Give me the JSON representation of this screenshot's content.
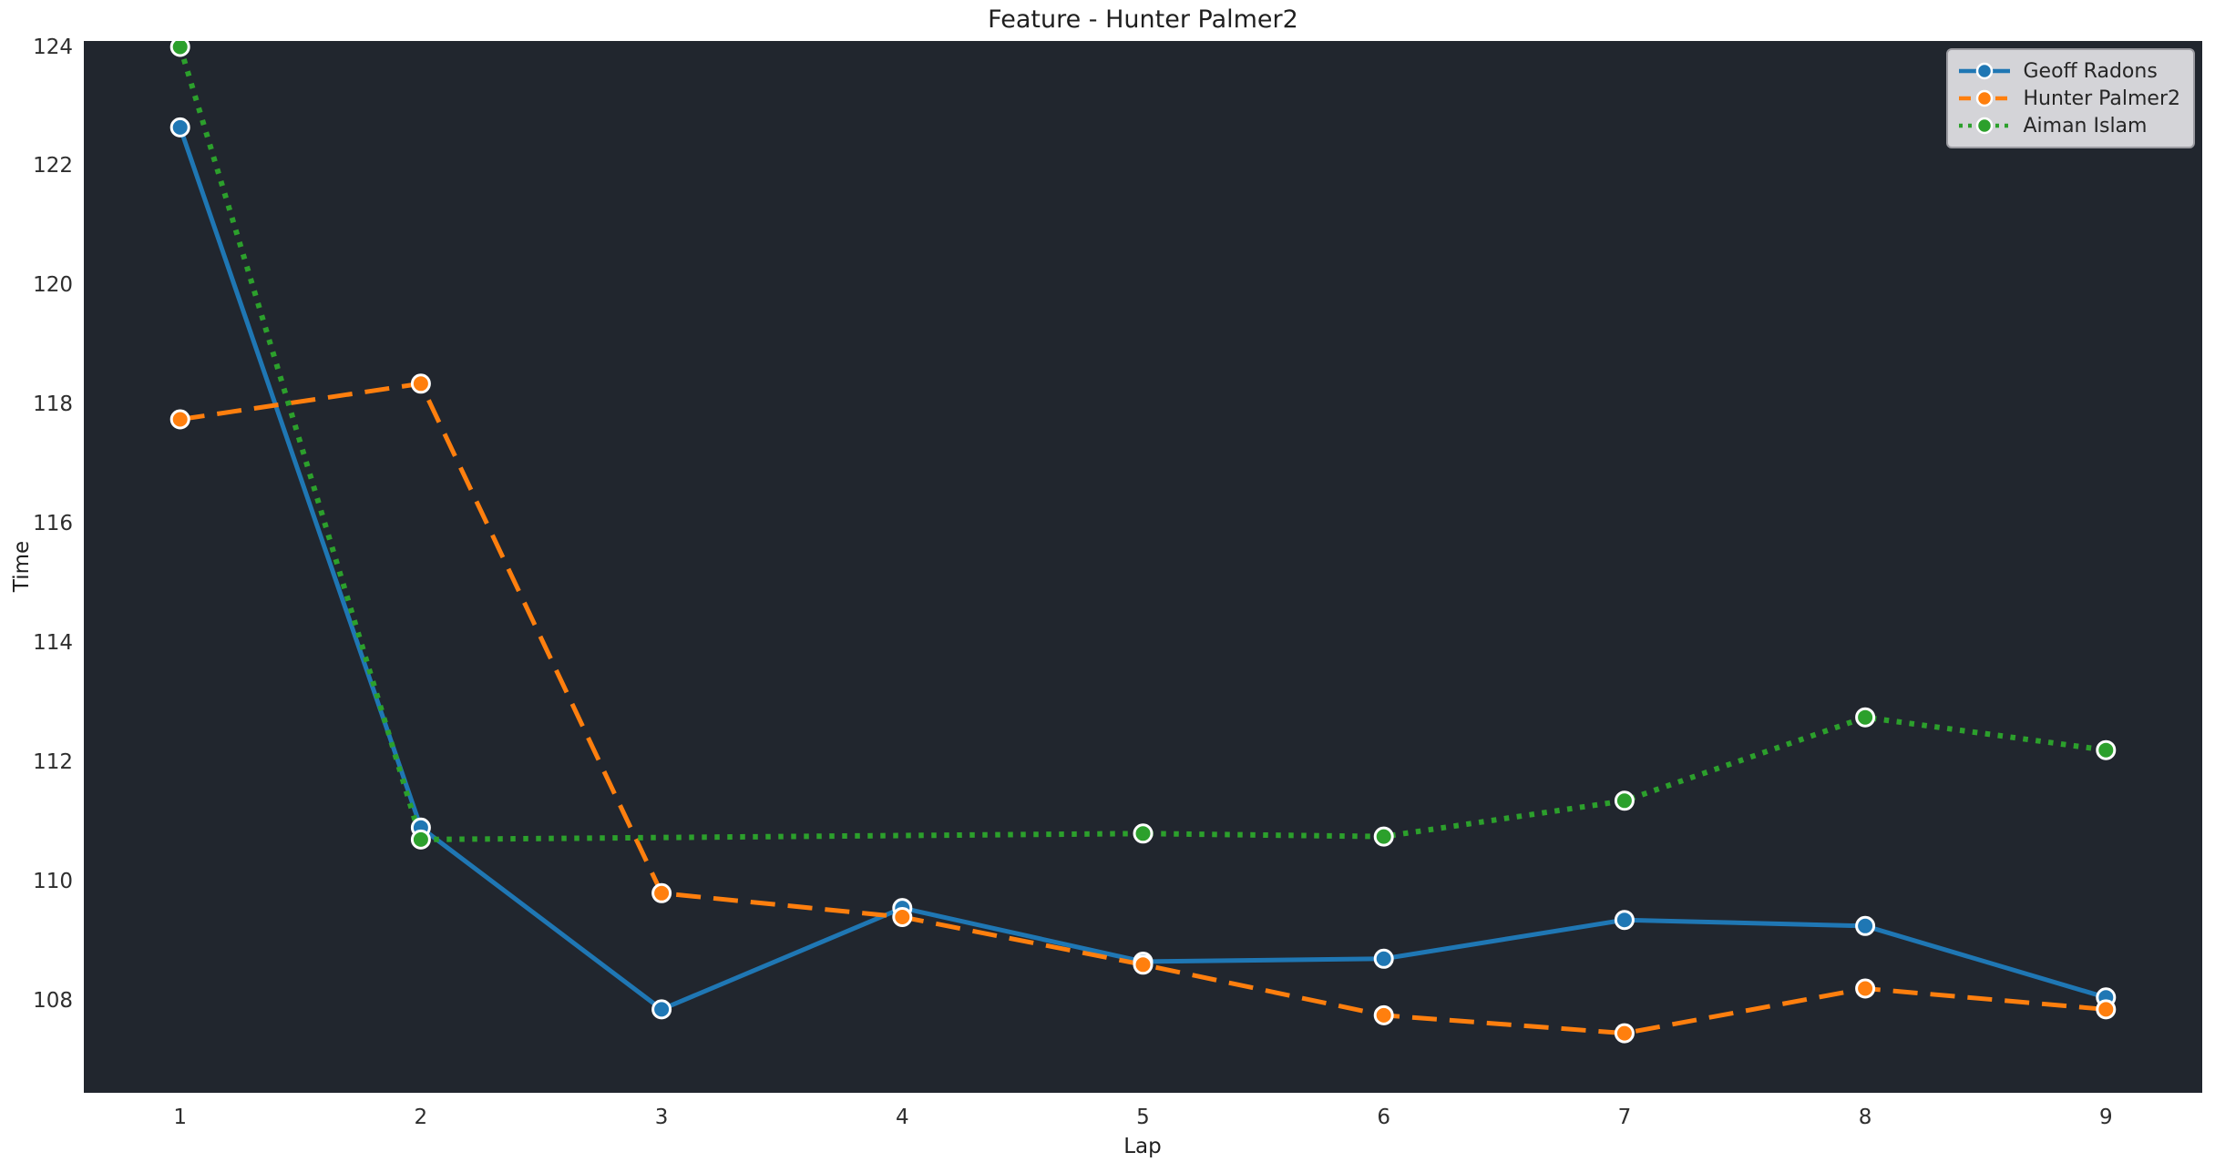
{
  "figure": {
    "title": "Feature - Hunter Palmer2"
  },
  "chart_data": {
    "type": "line",
    "title": "Feature - Hunter Palmer2",
    "xlabel": "Lap",
    "ylabel": "Time",
    "x": [
      1,
      2,
      3,
      4,
      5,
      6,
      7,
      8,
      9
    ],
    "xticks": [
      "1",
      "2",
      "3",
      "4",
      "5",
      "6",
      "7",
      "8",
      "9"
    ],
    "yticks": [
      124,
      122,
      120,
      118,
      116,
      114,
      112,
      110,
      108
    ],
    "xlim": [
      0.6,
      9.4
    ],
    "ylim": [
      106.45,
      124.1
    ],
    "grid": false,
    "legend_position": "upper right",
    "plot_background": "#21262e",
    "figure_background": "#ffffff",
    "marker_edge_color": "#ffffff",
    "series": [
      {
        "name": "Geoff Radons",
        "color": "#1f77b4",
        "linestyle": "solid",
        "marker": "circle",
        "values": [
          122.65,
          110.9,
          107.85,
          109.55,
          108.65,
          108.7,
          109.35,
          109.25,
          108.05
        ]
      },
      {
        "name": "Hunter Palmer2",
        "color": "#ff7f0e",
        "linestyle": "dashed",
        "marker": "circle",
        "values": [
          117.75,
          118.35,
          109.8,
          109.4,
          108.6,
          107.75,
          107.45,
          108.2,
          107.85
        ]
      },
      {
        "name": "Aiman Islam",
        "color": "#2ca02c",
        "linestyle": "dotted",
        "marker": "circle",
        "values": [
          124.0,
          110.7,
          null,
          null,
          110.8,
          110.75,
          111.35,
          112.75,
          112.2
        ]
      }
    ]
  }
}
